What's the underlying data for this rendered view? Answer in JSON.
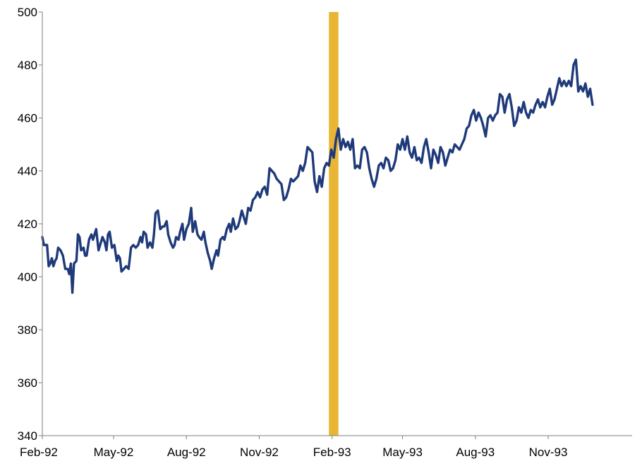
{
  "chart_data": {
    "type": "line",
    "title": "",
    "xlabel": "",
    "ylabel": "",
    "ylim": [
      340,
      500
    ],
    "yticks": [
      340,
      360,
      380,
      400,
      420,
      440,
      460,
      480,
      500
    ],
    "xlim": [
      "1992-02-01",
      "1994-02-15"
    ],
    "xticks": [
      {
        "date": "1992-02-01",
        "label": "Feb-92"
      },
      {
        "date": "1992-05-01",
        "label": "May-92"
      },
      {
        "date": "1992-08-01",
        "label": "Aug-92"
      },
      {
        "date": "1992-11-01",
        "label": "Nov-92"
      },
      {
        "date": "1993-02-01",
        "label": "Feb-93"
      },
      {
        "date": "1993-05-01",
        "label": "May-93"
      },
      {
        "date": "1993-08-01",
        "label": "Aug-93"
      },
      {
        "date": "1993-11-01",
        "label": "Nov-93"
      }
    ],
    "grid": false,
    "legend": "none",
    "highlight_band": {
      "start": "1993-01-28",
      "end": "1993-02-09",
      "color": "#E8B534"
    },
    "series": [
      {
        "color": "#1F3A7A",
        "points": [
          [
            "1992-02-01",
            415
          ],
          [
            "1992-02-03",
            412
          ],
          [
            "1992-02-07",
            412
          ],
          [
            "1992-02-09",
            404
          ],
          [
            "1992-02-11",
            405
          ],
          [
            "1992-02-13",
            407
          ],
          [
            "1992-02-15",
            404
          ],
          [
            "1992-02-17",
            406
          ],
          [
            "1992-02-19",
            407
          ],
          [
            "1992-02-21",
            411
          ],
          [
            "1992-02-24",
            410
          ],
          [
            "1992-02-27",
            408
          ],
          [
            "1992-03-01",
            403
          ],
          [
            "1992-03-04",
            403
          ],
          [
            "1992-03-06",
            401
          ],
          [
            "1992-03-08",
            405
          ],
          [
            "1992-03-10",
            394
          ],
          [
            "1992-03-12",
            405
          ],
          [
            "1992-03-15",
            406
          ],
          [
            "1992-03-17",
            416
          ],
          [
            "1992-03-19",
            415
          ],
          [
            "1992-03-21",
            410
          ],
          [
            "1992-03-24",
            411
          ],
          [
            "1992-03-26",
            408
          ],
          [
            "1992-03-28",
            408
          ],
          [
            "1992-03-31",
            414
          ],
          [
            "1992-04-03",
            416
          ],
          [
            "1992-04-05",
            414
          ],
          [
            "1992-04-07",
            416
          ],
          [
            "1992-04-09",
            418
          ],
          [
            "1992-04-12",
            410
          ],
          [
            "1992-04-14",
            412
          ],
          [
            "1992-04-17",
            415
          ],
          [
            "1992-04-20",
            413
          ],
          [
            "1992-04-22",
            410
          ],
          [
            "1992-04-24",
            416
          ],
          [
            "1992-04-26",
            417
          ],
          [
            "1992-04-29",
            411
          ],
          [
            "1992-05-02",
            412
          ],
          [
            "1992-05-05",
            406
          ],
          [
            "1992-05-07",
            408
          ],
          [
            "1992-05-09",
            407
          ],
          [
            "1992-05-11",
            402
          ],
          [
            "1992-05-14",
            403
          ],
          [
            "1992-05-17",
            404
          ],
          [
            "1992-05-20",
            403
          ],
          [
            "1992-05-23",
            411
          ],
          [
            "1992-05-26",
            412
          ],
          [
            "1992-05-29",
            411
          ],
          [
            "1992-06-01",
            412
          ],
          [
            "1992-06-04",
            415
          ],
          [
            "1992-06-06",
            413
          ],
          [
            "1992-06-08",
            417
          ],
          [
            "1992-06-11",
            416
          ],
          [
            "1992-06-13",
            411
          ],
          [
            "1992-06-16",
            413
          ],
          [
            "1992-06-19",
            411
          ],
          [
            "1992-06-21",
            416
          ],
          [
            "1992-06-23",
            424
          ],
          [
            "1992-06-26",
            425
          ],
          [
            "1992-06-29",
            418
          ],
          [
            "1992-07-02",
            419
          ],
          [
            "1992-07-04",
            419
          ],
          [
            "1992-07-07",
            421
          ],
          [
            "1992-07-09",
            416
          ],
          [
            "1992-07-12",
            413
          ],
          [
            "1992-07-15",
            411
          ],
          [
            "1992-07-17",
            412
          ],
          [
            "1992-07-19",
            415
          ],
          [
            "1992-07-22",
            414
          ],
          [
            "1992-07-24",
            417
          ],
          [
            "1992-07-27",
            420
          ],
          [
            "1992-07-29",
            414
          ],
          [
            "1992-08-01",
            418
          ],
          [
            "1992-08-04",
            420
          ],
          [
            "1992-08-07",
            426
          ],
          [
            "1992-08-09",
            417
          ],
          [
            "1992-08-12",
            421
          ],
          [
            "1992-08-15",
            416
          ],
          [
            "1992-08-17",
            415
          ],
          [
            "1992-08-20",
            414
          ],
          [
            "1992-08-23",
            417
          ],
          [
            "1992-08-25",
            413
          ],
          [
            "1992-08-28",
            409
          ],
          [
            "1992-08-31",
            406
          ],
          [
            "1992-09-02",
            403
          ],
          [
            "1992-09-05",
            407
          ],
          [
            "1992-09-08",
            410
          ],
          [
            "1992-09-10",
            408
          ],
          [
            "1992-09-13",
            414
          ],
          [
            "1992-09-16",
            415
          ],
          [
            "1992-09-18",
            414
          ],
          [
            "1992-09-21",
            418
          ],
          [
            "1992-09-24",
            420
          ],
          [
            "1992-09-26",
            417
          ],
          [
            "1992-09-29",
            422
          ],
          [
            "1992-10-02",
            418
          ],
          [
            "1992-10-05",
            419
          ],
          [
            "1992-10-07",
            421
          ],
          [
            "1992-10-10",
            425
          ],
          [
            "1992-10-13",
            422
          ],
          [
            "1992-10-15",
            420
          ],
          [
            "1992-10-18",
            426
          ],
          [
            "1992-10-21",
            425
          ],
          [
            "1992-10-24",
            429
          ],
          [
            "1992-10-27",
            430
          ],
          [
            "1992-10-30",
            432
          ],
          [
            "1992-11-02",
            430
          ],
          [
            "1992-11-05",
            433
          ],
          [
            "1992-11-08",
            434
          ],
          [
            "1992-11-11",
            431
          ],
          [
            "1992-11-14",
            441
          ],
          [
            "1992-11-17",
            440
          ],
          [
            "1992-11-20",
            439
          ],
          [
            "1992-11-23",
            437
          ],
          [
            "1992-11-26",
            436
          ],
          [
            "1992-11-29",
            435
          ],
          [
            "1992-12-02",
            429
          ],
          [
            "1992-12-05",
            430
          ],
          [
            "1992-12-08",
            433
          ],
          [
            "1992-12-11",
            437
          ],
          [
            "1992-12-14",
            436
          ],
          [
            "1992-12-17",
            437
          ],
          [
            "1992-12-20",
            438
          ],
          [
            "1992-12-23",
            442
          ],
          [
            "1992-12-26",
            440
          ],
          [
            "1992-12-29",
            443
          ],
          [
            "1993-01-01",
            449
          ],
          [
            "1993-01-04",
            448
          ],
          [
            "1993-01-07",
            447
          ],
          [
            "1993-01-10",
            436
          ],
          [
            "1993-01-13",
            432
          ],
          [
            "1993-01-16",
            438
          ],
          [
            "1993-01-19",
            434
          ],
          [
            "1993-01-22",
            441
          ],
          [
            "1993-01-25",
            443
          ],
          [
            "1993-01-28",
            442
          ],
          [
            "1993-01-31",
            448
          ],
          [
            "1993-02-03",
            445
          ],
          [
            "1993-02-06",
            452
          ],
          [
            "1993-02-09",
            456
          ],
          [
            "1993-02-12",
            448
          ],
          [
            "1993-02-15",
            452
          ],
          [
            "1993-02-18",
            449
          ],
          [
            "1993-02-21",
            451
          ],
          [
            "1993-02-24",
            448
          ],
          [
            "1993-02-27",
            452
          ],
          [
            "1993-03-02",
            441
          ],
          [
            "1993-03-05",
            442
          ],
          [
            "1993-03-08",
            441
          ],
          [
            "1993-03-11",
            448
          ],
          [
            "1993-03-14",
            449
          ],
          [
            "1993-03-17",
            447
          ],
          [
            "1993-03-20",
            441
          ],
          [
            "1993-03-23",
            437
          ],
          [
            "1993-03-26",
            434
          ],
          [
            "1993-03-29",
            437
          ],
          [
            "1993-04-01",
            442
          ],
          [
            "1993-04-04",
            443
          ],
          [
            "1993-04-07",
            441
          ],
          [
            "1993-04-10",
            445
          ],
          [
            "1993-04-13",
            444
          ],
          [
            "1993-04-16",
            440
          ],
          [
            "1993-04-19",
            441
          ],
          [
            "1993-04-22",
            444
          ],
          [
            "1993-04-25",
            450
          ],
          [
            "1993-04-28",
            448
          ],
          [
            "1993-05-01",
            452
          ],
          [
            "1993-05-04",
            448
          ],
          [
            "1993-05-07",
            453
          ],
          [
            "1993-05-10",
            447
          ],
          [
            "1993-05-13",
            445
          ],
          [
            "1993-05-16",
            449
          ],
          [
            "1993-05-19",
            444
          ],
          [
            "1993-05-22",
            445
          ],
          [
            "1993-05-25",
            443
          ],
          [
            "1993-05-28",
            449
          ],
          [
            "1993-05-31",
            452
          ],
          [
            "1993-06-03",
            447
          ],
          [
            "1993-06-06",
            441
          ],
          [
            "1993-06-09",
            448
          ],
          [
            "1993-06-12",
            446
          ],
          [
            "1993-06-15",
            443
          ],
          [
            "1993-06-18",
            449
          ],
          [
            "1993-06-21",
            447
          ],
          [
            "1993-06-24",
            442
          ],
          [
            "1993-06-27",
            445
          ],
          [
            "1993-06-30",
            448
          ],
          [
            "1993-07-03",
            447
          ],
          [
            "1993-07-06",
            450
          ],
          [
            "1993-07-09",
            449
          ],
          [
            "1993-07-12",
            448
          ],
          [
            "1993-07-15",
            450
          ],
          [
            "1993-07-18",
            452
          ],
          [
            "1993-07-21",
            456
          ],
          [
            "1993-07-24",
            457
          ],
          [
            "1993-07-27",
            461
          ],
          [
            "1993-07-30",
            463
          ],
          [
            "1993-08-02",
            459
          ],
          [
            "1993-08-05",
            462
          ],
          [
            "1993-08-08",
            460
          ],
          [
            "1993-08-11",
            457
          ],
          [
            "1993-08-14",
            453
          ],
          [
            "1993-08-17",
            460
          ],
          [
            "1993-08-20",
            461
          ],
          [
            "1993-08-23",
            459
          ],
          [
            "1993-08-26",
            461
          ],
          [
            "1993-08-29",
            462
          ],
          [
            "1993-09-01",
            469
          ],
          [
            "1993-09-04",
            468
          ],
          [
            "1993-09-07",
            462
          ],
          [
            "1993-09-10",
            467
          ],
          [
            "1993-09-13",
            469
          ],
          [
            "1993-09-16",
            464
          ],
          [
            "1993-09-19",
            457
          ],
          [
            "1993-09-22",
            459
          ],
          [
            "1993-09-25",
            464
          ],
          [
            "1993-09-28",
            462
          ],
          [
            "1993-10-01",
            466
          ],
          [
            "1993-10-04",
            462
          ],
          [
            "1993-10-07",
            460
          ],
          [
            "1993-10-10",
            463
          ],
          [
            "1993-10-13",
            462
          ],
          [
            "1993-10-16",
            465
          ],
          [
            "1993-10-19",
            467
          ],
          [
            "1993-10-22",
            464
          ],
          [
            "1993-10-25",
            466
          ],
          [
            "1993-10-28",
            464
          ],
          [
            "1993-10-31",
            468
          ],
          [
            "1993-11-03",
            471
          ],
          [
            "1993-11-06",
            465
          ],
          [
            "1993-11-09",
            467
          ],
          [
            "1993-11-12",
            471
          ],
          [
            "1993-11-15",
            475
          ],
          [
            "1993-11-18",
            472
          ],
          [
            "1993-11-21",
            474
          ],
          [
            "1993-11-24",
            472
          ],
          [
            "1993-11-27",
            474
          ],
          [
            "1993-11-30",
            472
          ],
          [
            "1993-12-03",
            480
          ],
          [
            "1993-12-06",
            482
          ],
          [
            "1993-12-09",
            470
          ],
          [
            "1993-12-12",
            472
          ],
          [
            "1993-12-15",
            470
          ],
          [
            "1993-12-18",
            473
          ],
          [
            "1993-12-21",
            468
          ],
          [
            "1993-12-24",
            471
          ],
          [
            "1993-12-27",
            465
          ]
        ]
      }
    ]
  }
}
